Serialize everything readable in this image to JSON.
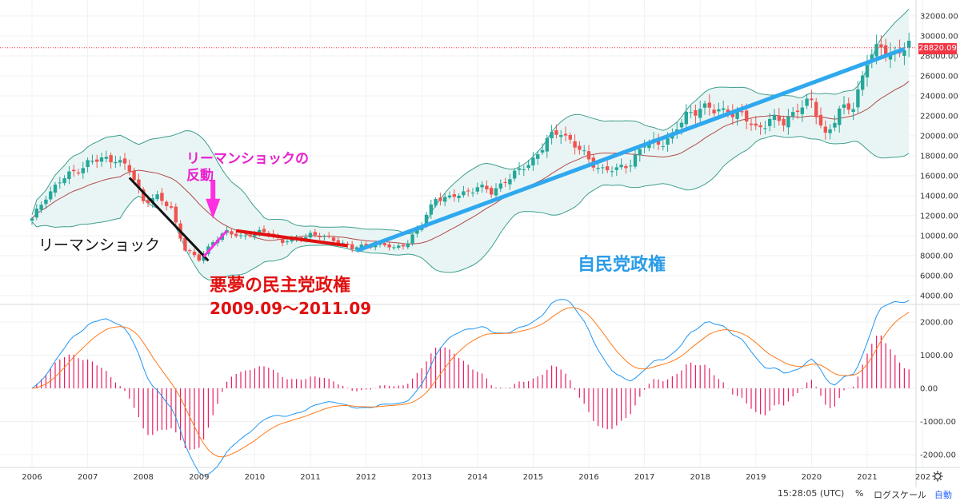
{
  "annotations": {
    "lehman": "リーマンショック",
    "rebound_line1": "リーマンショックの",
    "rebound_line2": "反動",
    "nightmare_line1": "悪夢の民主党政権",
    "nightmare_line2": "2009.09〜2011.09",
    "ldp": "自民党政権"
  },
  "last_price_label": "28820.09",
  "toolbar": {
    "time": "15:28:05 (UTC)",
    "percent": "%",
    "log_scale": "ログスケール",
    "auto": "自動"
  },
  "colors": {
    "up_candle": "#26a69a",
    "down_candle": "#ef5350",
    "band_fill": "#e9f5f4",
    "band_line": "#3f9e8f",
    "mid_line": "#b04a4a",
    "macd_line": "#2196f3",
    "signal_line": "#ff7a1a",
    "histogram": "#e91e63",
    "black_trend": "#111111",
    "magenta_trend": "#ff2ee0",
    "red_trend": "#e01010",
    "blue_trend": "#2fa8ef"
  },
  "chart_data": [
    {
      "type": "candlestick",
      "series_type": "monthly",
      "x_ticks": [
        "2006",
        "2007",
        "2008",
        "2009",
        "2010",
        "2011",
        "2012",
        "2013",
        "2014",
        "2015",
        "2016",
        "2017",
        "2018",
        "2019",
        "2020",
        "2021",
        "202"
      ],
      "y_ticks": [
        "32000.00",
        "30000.00",
        "28000.00",
        "26000.00",
        "24000.00",
        "22000.00",
        "20000.00",
        "18000.00",
        "16000.00",
        "14000.00",
        "12000.00",
        "10000.00",
        "8000.00",
        "6000.00",
        "4000.00"
      ],
      "ylim": [
        4000,
        32000
      ],
      "last_price": 28820.09,
      "closes": [
        {
          "x": "2006-01",
          "y": 11600
        },
        {
          "x": "2006-04",
          "y": 14000
        },
        {
          "x": "2006-07",
          "y": 15400
        },
        {
          "x": "2006-10",
          "y": 16400
        },
        {
          "x": "2007-01",
          "y": 17300
        },
        {
          "x": "2007-04",
          "y": 17600
        },
        {
          "x": "2007-07",
          "y": 17800
        },
        {
          "x": "2007-10",
          "y": 16500
        },
        {
          "x": "2008-01",
          "y": 13600
        },
        {
          "x": "2008-04",
          "y": 13800
        },
        {
          "x": "2008-07",
          "y": 12700
        },
        {
          "x": "2008-10",
          "y": 8600
        },
        {
          "x": "2009-01",
          "y": 7600
        },
        {
          "x": "2009-04",
          "y": 9500
        },
        {
          "x": "2009-07",
          "y": 10300
        },
        {
          "x": "2009-10",
          "y": 10000
        },
        {
          "x": "2010-01",
          "y": 10200
        },
        {
          "x": "2010-04",
          "y": 10400
        },
        {
          "x": "2010-07",
          "y": 9400
        },
        {
          "x": "2010-10",
          "y": 9600
        },
        {
          "x": "2011-01",
          "y": 10200
        },
        {
          "x": "2011-04",
          "y": 9800
        },
        {
          "x": "2011-07",
          "y": 9500
        },
        {
          "x": "2011-10",
          "y": 8700
        },
        {
          "x": "2012-01",
          "y": 9000
        },
        {
          "x": "2012-04",
          "y": 9200
        },
        {
          "x": "2012-07",
          "y": 8700
        },
        {
          "x": "2012-10",
          "y": 9400
        },
        {
          "x": "2013-01",
          "y": 11100
        },
        {
          "x": "2013-04",
          "y": 13900
        },
        {
          "x": "2013-07",
          "y": 13700
        },
        {
          "x": "2013-10",
          "y": 14300
        },
        {
          "x": "2014-01",
          "y": 14900
        },
        {
          "x": "2014-04",
          "y": 14300
        },
        {
          "x": "2014-07",
          "y": 15600
        },
        {
          "x": "2014-10",
          "y": 16400
        },
        {
          "x": "2015-01",
          "y": 17700
        },
        {
          "x": "2015-04",
          "y": 19500
        },
        {
          "x": "2015-07",
          "y": 20500
        },
        {
          "x": "2015-10",
          "y": 19100
        },
        {
          "x": "2016-01",
          "y": 17500
        },
        {
          "x": "2016-04",
          "y": 16700
        },
        {
          "x": "2016-07",
          "y": 16500
        },
        {
          "x": "2016-10",
          "y": 17400
        },
        {
          "x": "2017-01",
          "y": 19100
        },
        {
          "x": "2017-04",
          "y": 19300
        },
        {
          "x": "2017-07",
          "y": 20000
        },
        {
          "x": "2017-10",
          "y": 22000
        },
        {
          "x": "2018-01",
          "y": 23000
        },
        {
          "x": "2018-04",
          "y": 22400
        },
        {
          "x": "2018-07",
          "y": 22600
        },
        {
          "x": "2018-10",
          "y": 21900
        },
        {
          "x": "2019-01",
          "y": 20800
        },
        {
          "x": "2019-04",
          "y": 21600
        },
        {
          "x": "2019-07",
          "y": 21300
        },
        {
          "x": "2019-10",
          "y": 22900
        },
        {
          "x": "2020-01",
          "y": 23200
        },
        {
          "x": "2020-04",
          "y": 20200
        },
        {
          "x": "2020-07",
          "y": 22300
        },
        {
          "x": "2020-10",
          "y": 23100
        },
        {
          "x": "2021-01",
          "y": 27500
        },
        {
          "x": "2021-04",
          "y": 28800
        },
        {
          "x": "2021-07",
          "y": 28300
        },
        {
          "x": "2021-10",
          "y": 28820
        }
      ]
    },
    {
      "type": "macd",
      "y_ticks": [
        "2000.00",
        "1000.00",
        "0.00",
        "-1000.00",
        "-2000.00"
      ],
      "ylim": [
        -2500,
        2300
      ]
    }
  ]
}
